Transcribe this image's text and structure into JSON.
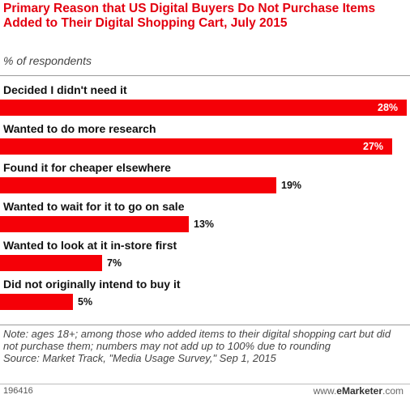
{
  "chart_data": {
    "type": "bar",
    "orientation": "horizontal",
    "title": "Primary Reason that US Digital Buyers Do Not Purchase Items Added to Their Digital Shopping Cart, July 2015",
    "subtitle": "% of respondents",
    "categories": [
      "Decided I didn't need it",
      "Wanted to do more research",
      "Found it for cheaper elsewhere",
      "Wanted to wait for it to go on sale",
      "Wanted to look at it in-store first",
      "Did not originally intend to buy it"
    ],
    "values": [
      28,
      27,
      19,
      13,
      7,
      5
    ],
    "value_labels": [
      "28%",
      "27%",
      "19%",
      "13%",
      "7%",
      "5%"
    ],
    "bar_color": "#f50007",
    "xlim": [
      0,
      28
    ],
    "grid": false,
    "legend": "none"
  },
  "note": "Note: ages 18+; among those who added items to their digital shopping cart but did not purchase them; numbers may not add up to 100% due to rounding",
  "source": "Source: Market Track, \"Media Usage Survey,\" Sep 1, 2015",
  "chart_id": "196416",
  "brand": {
    "prefix": "www.",
    "name": "eMarketer",
    "suffix": ".com"
  },
  "colors": {
    "accent": "#e3000f",
    "bar": "#f50007"
  }
}
